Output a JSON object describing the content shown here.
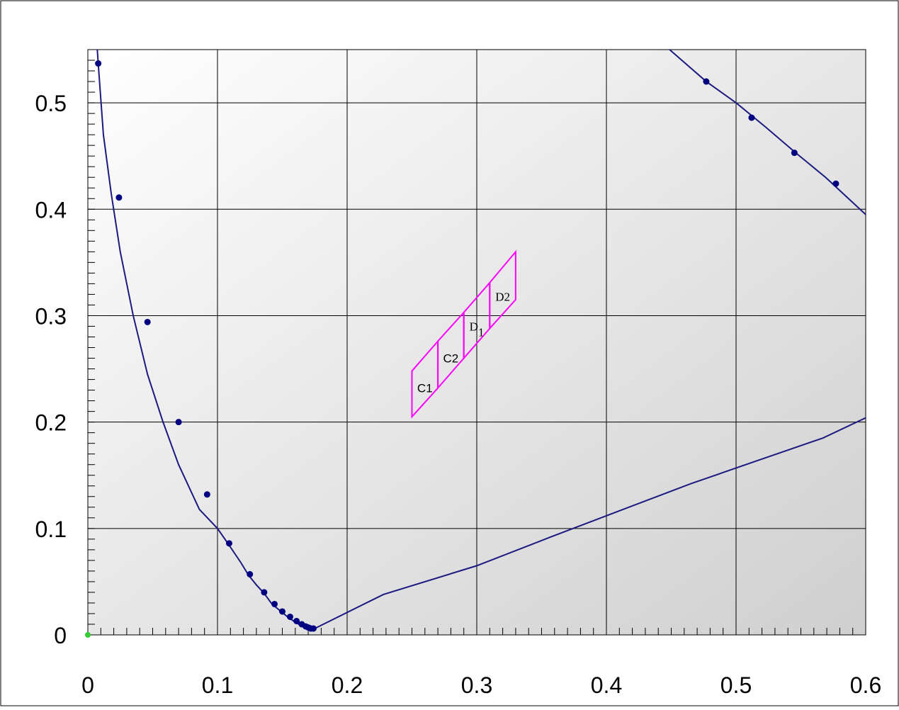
{
  "chart_data": {
    "type": "line",
    "title": "",
    "xlabel": "",
    "ylabel": "",
    "xlim": [
      0,
      0.6
    ],
    "ylim": [
      0,
      0.55
    ],
    "x_ticks": [
      {
        "value": 0,
        "label": "0"
      },
      {
        "value": 0.1,
        "label": "0.1"
      },
      {
        "value": 0.2,
        "label": "0.2"
      },
      {
        "value": 0.3,
        "label": "0.3"
      },
      {
        "value": 0.4,
        "label": "0.4"
      },
      {
        "value": 0.5,
        "label": "0.5"
      },
      {
        "value": 0.6,
        "label": "0.6"
      }
    ],
    "y_ticks": [
      {
        "value": 0,
        "label": "0"
      },
      {
        "value": 0.1,
        "label": "0.1"
      },
      {
        "value": 0.2,
        "label": "0.2"
      },
      {
        "value": 0.3,
        "label": "0.3"
      },
      {
        "value": 0.4,
        "label": "0.4"
      },
      {
        "value": 0.5,
        "label": "0.5"
      }
    ],
    "grid": true,
    "minor_tick_step": 0.01,
    "colors": {
      "plot_bg_light": "#ffffff",
      "plot_bg_dark": "#cfcfcf",
      "curve": "#1a1a80",
      "marker": "#000080",
      "regions": "#ff00ff",
      "origin_marker": "#33cc33",
      "grid": "#000000"
    },
    "series": [
      {
        "kind": "curve",
        "points": [
          [
            0.007,
            0.555
          ],
          [
            0.008,
            0.537
          ],
          [
            0.012,
            0.47
          ],
          [
            0.018,
            0.415
          ],
          [
            0.025,
            0.36
          ],
          [
            0.035,
            0.3
          ],
          [
            0.046,
            0.245
          ],
          [
            0.058,
            0.2
          ],
          [
            0.07,
            0.16
          ],
          [
            0.086,
            0.118
          ],
          [
            0.1,
            0.1
          ],
          [
            0.108,
            0.086
          ],
          [
            0.118,
            0.068
          ],
          [
            0.124,
            0.056
          ],
          [
            0.13,
            0.047
          ],
          [
            0.136,
            0.039
          ],
          [
            0.142,
            0.029
          ],
          [
            0.149,
            0.022
          ],
          [
            0.155,
            0.016
          ],
          [
            0.16,
            0.012
          ],
          [
            0.164,
            0.009
          ],
          [
            0.167,
            0.007
          ],
          [
            0.17,
            0.006
          ],
          [
            0.175,
            0.006
          ],
          [
            0.228,
            0.038
          ],
          [
            0.3,
            0.065
          ],
          [
            0.357,
            0.092
          ],
          [
            0.413,
            0.118
          ],
          [
            0.465,
            0.142
          ],
          [
            0.517,
            0.164
          ],
          [
            0.567,
            0.185
          ],
          [
            0.6,
            0.204
          ]
        ]
      },
      {
        "kind": "markers",
        "points": [
          [
            0.008,
            0.537
          ],
          [
            0.024,
            0.411
          ],
          [
            0.046,
            0.294
          ],
          [
            0.07,
            0.2
          ],
          [
            0.092,
            0.132
          ],
          [
            0.109,
            0.086
          ],
          [
            0.125,
            0.057
          ],
          [
            0.136,
            0.04
          ],
          [
            0.144,
            0.029
          ],
          [
            0.15,
            0.022
          ],
          [
            0.156,
            0.017
          ],
          [
            0.161,
            0.013
          ],
          [
            0.165,
            0.01
          ],
          [
            0.168,
            0.008
          ],
          [
            0.17,
            0.007
          ],
          [
            0.172,
            0.006
          ],
          [
            0.174,
            0.006
          ]
        ]
      },
      {
        "kind": "curve",
        "points": [
          [
            0.444,
            0.555
          ],
          [
            0.477,
            0.52
          ],
          [
            0.5,
            0.5
          ],
          [
            0.523,
            0.477
          ],
          [
            0.546,
            0.453
          ],
          [
            0.569,
            0.43
          ],
          [
            0.6,
            0.395
          ]
        ]
      },
      {
        "kind": "markers",
        "points": [
          [
            0.477,
            0.52
          ],
          [
            0.512,
            0.486
          ],
          [
            0.545,
            0.453
          ],
          [
            0.577,
            0.424
          ]
        ]
      }
    ],
    "regions": [
      {
        "label": "C1",
        "font": "sans",
        "polygon": [
          [
            0.25,
            0.248
          ],
          [
            0.27,
            0.276
          ],
          [
            0.27,
            0.232
          ],
          [
            0.25,
            0.205
          ]
        ],
        "label_pos": [
          0.26,
          0.232
        ]
      },
      {
        "label": "C2",
        "font": "sans",
        "polygon": [
          [
            0.27,
            0.276
          ],
          [
            0.29,
            0.303
          ],
          [
            0.29,
            0.26
          ],
          [
            0.27,
            0.232
          ]
        ],
        "label_pos": [
          0.28,
          0.26
        ]
      },
      {
        "label": "D",
        "label_sub": "1",
        "font": "serif",
        "polygon": [
          [
            0.29,
            0.303
          ],
          [
            0.31,
            0.331
          ],
          [
            0.31,
            0.288
          ],
          [
            0.29,
            0.26
          ]
        ],
        "label_pos": [
          0.3,
          0.29
        ]
      },
      {
        "label": "D2",
        "font": "serif",
        "polygon": [
          [
            0.31,
            0.331
          ],
          [
            0.33,
            0.36
          ],
          [
            0.33,
            0.315
          ],
          [
            0.31,
            0.288
          ]
        ],
        "label_pos": [
          0.32,
          0.318
        ]
      }
    ],
    "origin_marker": [
      0,
      0
    ]
  }
}
